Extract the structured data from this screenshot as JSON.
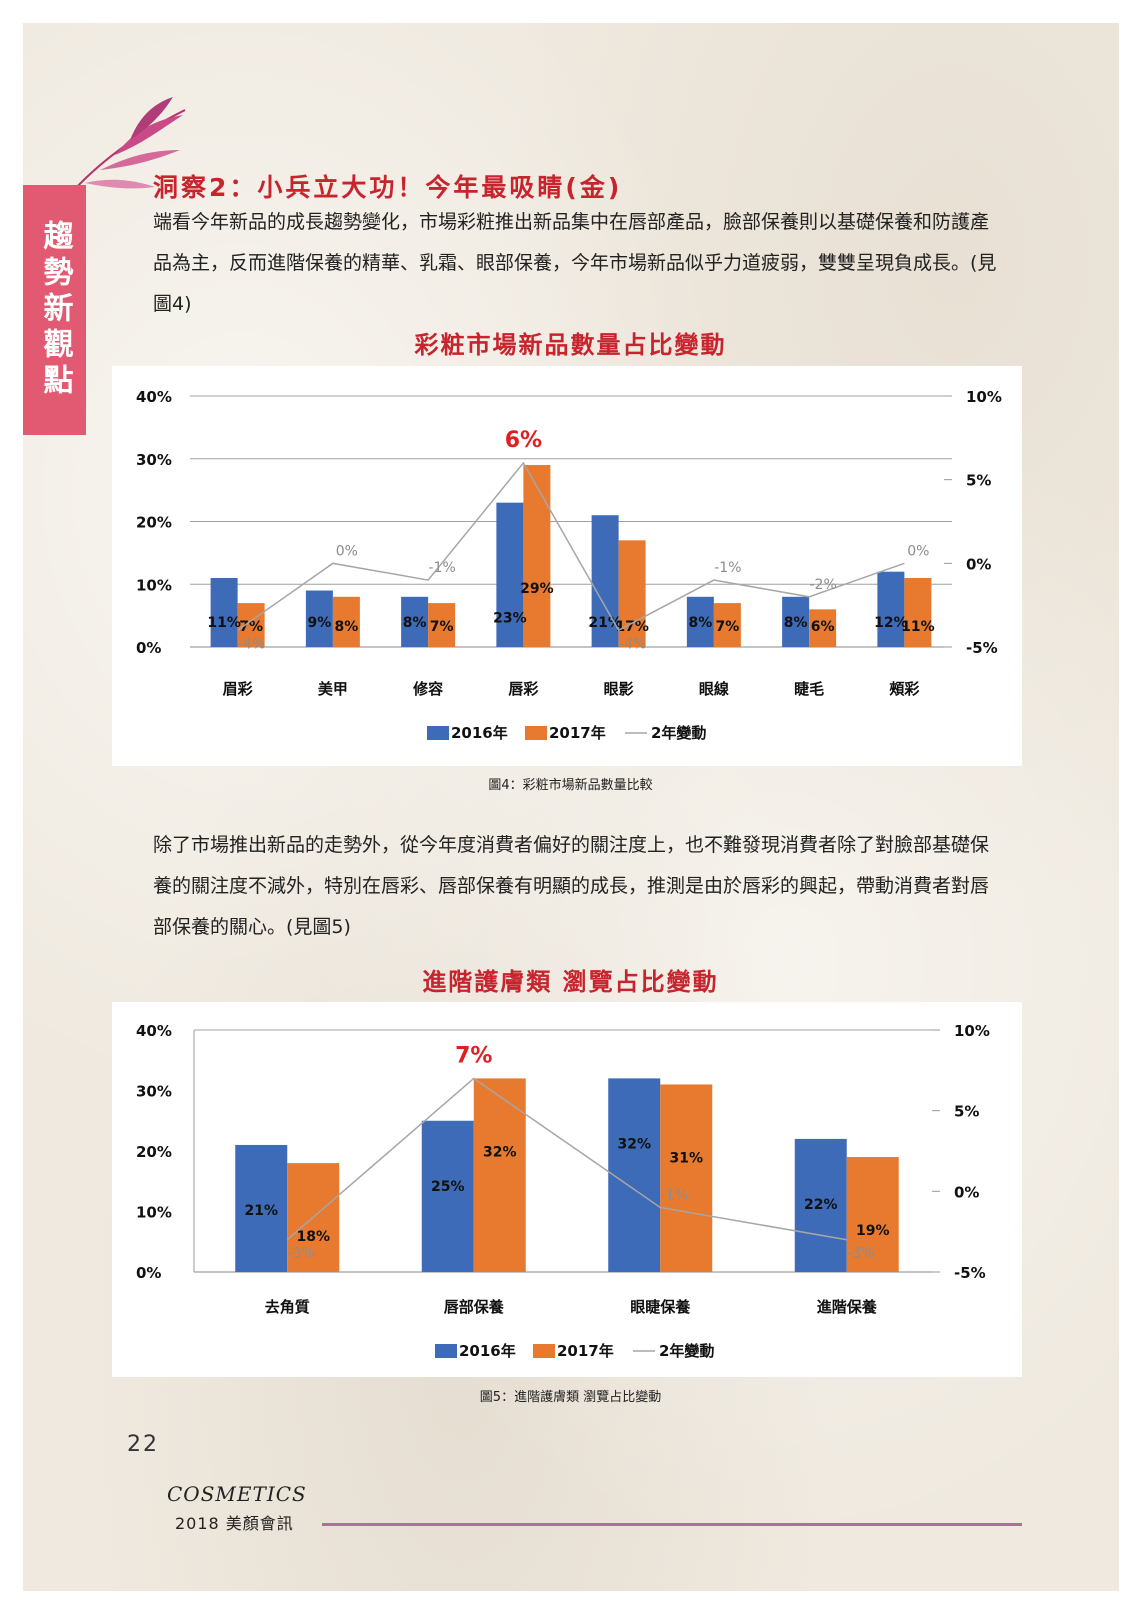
{
  "side_tab": "趨勢新觀點",
  "section_title": "洞察2：小兵立大功！今年最吸睛(金)",
  "paragraph1": "端看今年新品的成長趨勢變化，市場彩粧推出新品集中在唇部產品，臉部保養則以基礎保養和防護產品為主，反而進階保養的精華、乳霜、眼部保養，今年市場新品似乎力道疲弱，雙雙呈現負成長。(見圖4)",
  "paragraph2": "除了市場推出新品的走勢外，從今年度消費者偏好的關注度上，也不難發現消費者除了對臉部基礎保養的關注度不減外，特別在唇彩、唇部保養有明顯的成長，推測是由於唇彩的興起，帶動消費者對唇部保養的關心。(見圖5)",
  "colors": {
    "s2016": "#3d6bb8",
    "s2017": "#e87a30",
    "change": "#a6a6a6",
    "highlight": "#e02020",
    "title": "#c8242e"
  },
  "chart_data": [
    {
      "type": "bar",
      "title": "彩粧市場新品數量占比變動",
      "caption": "圖4：彩粧市場新品數量比較",
      "categories": [
        "眉彩",
        "美甲",
        "修容",
        "唇彩",
        "眼影",
        "眼線",
        "睫毛",
        "頰彩"
      ],
      "series": [
        {
          "name": "2016年",
          "values": [
            11,
            9,
            8,
            23,
            21,
            8,
            8,
            12
          ],
          "labels": [
            "11%",
            "9%",
            "8%",
            "23%",
            "21%",
            "8%",
            "8%",
            "12%"
          ]
        },
        {
          "name": "2017年",
          "values": [
            7,
            8,
            7,
            29,
            17,
            7,
            6,
            11
          ],
          "labels": [
            "7%",
            "8%",
            "7%",
            "29%",
            "17%",
            "7%",
            "6%",
            "11%"
          ]
        },
        {
          "name": "2年變動",
          "type": "line",
          "values": [
            -4,
            0,
            -1,
            6,
            -4,
            -1,
            -2,
            0
          ],
          "labels": [
            "-4%",
            "0%",
            "-1%",
            "6%",
            "-4%",
            "-1%",
            "-2%",
            "0%"
          ]
        }
      ],
      "highlight_index": 3,
      "left_ticks": [
        "0%",
        "10%",
        "20%",
        "30%",
        "40%"
      ],
      "right_ticks": [
        "-5%",
        "0%",
        "5%",
        "10%"
      ],
      "ylim": [
        0,
        40
      ],
      "y2lim": [
        -5,
        10
      ],
      "legend": "bottom"
    },
    {
      "type": "bar",
      "title": "進階護膚類 瀏覽占比變動",
      "caption": "圖5：進階護膚類 瀏覽占比變動",
      "categories": [
        "去角質",
        "唇部保養",
        "眼睫保養",
        "進階保養"
      ],
      "series": [
        {
          "name": "2016年",
          "values": [
            21,
            25,
            32,
            22
          ],
          "labels": [
            "21%",
            "25%",
            "32%",
            "22%"
          ]
        },
        {
          "name": "2017年",
          "values": [
            18,
            32,
            31,
            19
          ],
          "labels": [
            "18%",
            "32%",
            "31%",
            "19%"
          ]
        },
        {
          "name": "2年變動",
          "type": "line",
          "values": [
            -3,
            7,
            -1,
            -3
          ],
          "labels": [
            "-3%",
            "7%",
            "-1%",
            "-3%"
          ]
        }
      ],
      "highlight_index": 1,
      "left_ticks": [
        "0%",
        "10%",
        "20%",
        "30%",
        "40%"
      ],
      "right_ticks": [
        "-5%",
        "0%",
        "5%",
        "10%"
      ],
      "ylim": [
        0,
        40
      ],
      "y2lim": [
        -5,
        10
      ],
      "legend": "bottom"
    }
  ],
  "footer": {
    "page_number": "22",
    "brand": "COSMETICS",
    "subtitle": "2018 美顏會訊"
  }
}
